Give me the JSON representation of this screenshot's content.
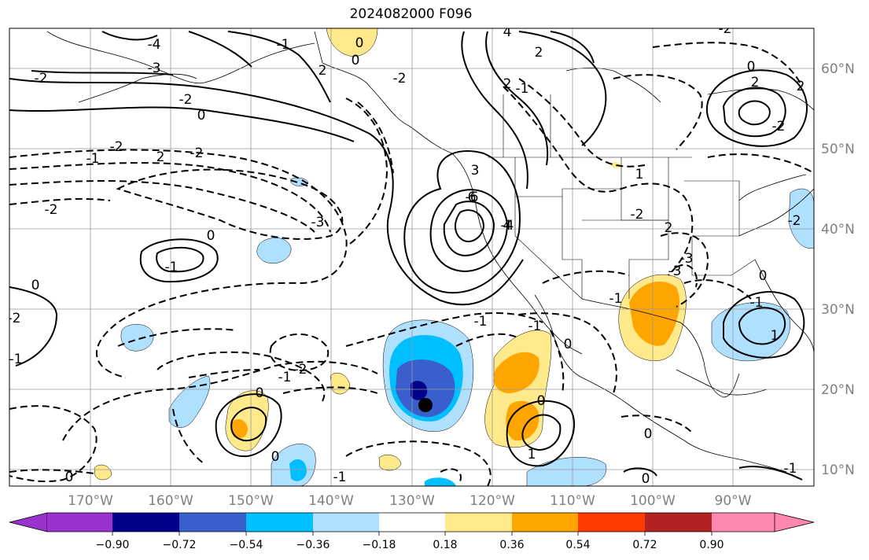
{
  "title": "2024082000 F096",
  "map": {
    "lon_labels": [
      "170°W",
      "160°W",
      "150°W",
      "140°W",
      "130°W",
      "120°W",
      "110°W",
      "100°W",
      "90°W"
    ],
    "lat_labels": [
      "60°N",
      "50°N",
      "40°N",
      "30°N",
      "20°N",
      "10°N"
    ],
    "contour_labels": [
      "-4",
      "-3",
      "-2",
      "0",
      "0",
      "2",
      "4",
      "-2",
      "-1",
      "0",
      "-2",
      "2",
      "-2",
      "-3",
      "-6",
      "-4",
      "2",
      "2",
      "-1",
      "2",
      "-2",
      "0",
      "-1",
      "0",
      "-1",
      "-2",
      "1",
      "-2",
      "2",
      "-3",
      "-1",
      "-1",
      "0",
      "-1",
      "0",
      "-1",
      "0",
      "0",
      "0",
      "1",
      "-2",
      "0",
      "-2",
      "2",
      "3",
      "6",
      "4",
      "-3",
      "-2",
      "-2",
      "-2",
      "-1",
      "0",
      "0",
      "-1",
      "1",
      "0",
      "-1",
      "-1"
    ]
  },
  "colorbar": {
    "ticks": [
      "−0.90",
      "−0.72",
      "−0.54",
      "−0.36",
      "−0.18",
      "0.18",
      "0.36",
      "0.54",
      "0.72",
      "0.90"
    ],
    "colors": [
      "#9933cc",
      "#00008b",
      "#3a5fcd",
      "#00bfff",
      "#b0e0ff",
      "#ffffff",
      "#ffe98a",
      "#ffa500",
      "#ff3a00",
      "#b22222",
      "#ff88b0"
    ]
  }
}
